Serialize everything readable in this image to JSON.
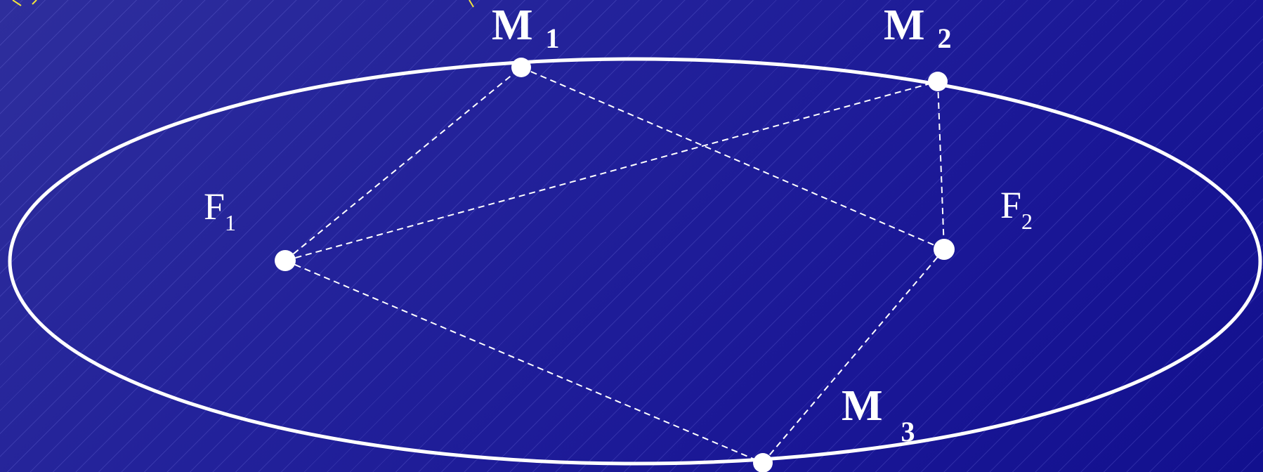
{
  "labels": {
    "M1": {
      "main": "M",
      "sub": "1"
    },
    "M2": {
      "main": "M",
      "sub": "2"
    },
    "M3": {
      "main": "M",
      "sub": "3"
    },
    "F1": {
      "main": "F",
      "sub": "1"
    },
    "F2": {
      "main": "F",
      "sub": "2"
    }
  },
  "colors": {
    "stroke": "#ffffff",
    "accent": "#f2e33c",
    "background": "#1c1a96"
  }
}
